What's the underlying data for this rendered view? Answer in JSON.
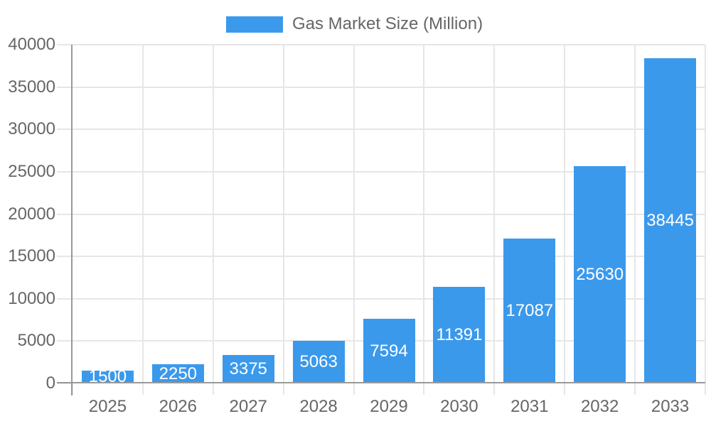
{
  "legend": {
    "label": "Gas Market Size (Million)"
  },
  "chart_data": {
    "type": "bar",
    "title": "",
    "xlabel": "",
    "ylabel": "",
    "categories": [
      "2025",
      "2026",
      "2027",
      "2028",
      "2029",
      "2030",
      "2031",
      "2032",
      "2033"
    ],
    "series": [
      {
        "name": "Gas Market Size (Million)",
        "values": [
          1500,
          2250,
          3375,
          5063,
          7594,
          11391,
          17087,
          25630,
          38445
        ]
      }
    ],
    "value_labels": [
      "1500",
      "2250",
      "3375",
      "5063",
      "7594",
      "11391",
      "17087",
      "25630",
      "38445"
    ],
    "ylim": [
      0,
      40000
    ],
    "yticks": [
      0,
      5000,
      10000,
      15000,
      20000,
      25000,
      30000,
      35000,
      40000
    ],
    "grid": true,
    "legend_position": "top",
    "colors": {
      "bar": "#3b99ec",
      "bar_value_text": "#ffffff",
      "axis_line": "#999999",
      "grid_line": "#e6e6e6",
      "tick_label": "#666666",
      "legend_text": "#666666",
      "background": "#ffffff"
    }
  }
}
